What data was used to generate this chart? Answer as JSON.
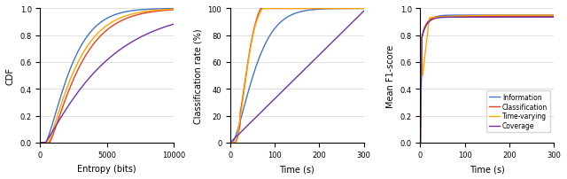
{
  "colors": {
    "information": "#4472C4",
    "classification": "#E8401C",
    "time_varying": "#FFA500",
    "coverage": "#7030A0"
  },
  "legend_labels": [
    "Information",
    "Classification",
    "Time-varying",
    "Coverage"
  ],
  "plot1": {
    "xlabel": "Entropy (bits)",
    "ylabel": "CDF",
    "xlim": [
      0,
      10000
    ],
    "ylim": [
      0,
      1
    ],
    "xticks": [
      0,
      5000,
      10000
    ],
    "yticks": [
      0,
      0.2,
      0.4,
      0.6,
      0.8,
      1.0
    ]
  },
  "plot2": {
    "xlabel": "Time (s)",
    "ylabel": "Classification rate (%)",
    "xlim": [
      0,
      300
    ],
    "ylim": [
      0,
      100
    ],
    "xticks": [
      0,
      100,
      200,
      300
    ],
    "yticks": [
      0,
      20,
      40,
      60,
      80,
      100
    ]
  },
  "plot3": {
    "xlabel": "Time (s)",
    "ylabel": "Mean F1-score",
    "xlim": [
      0,
      300
    ],
    "ylim": [
      0,
      1
    ],
    "xticks": [
      0,
      100,
      200,
      300
    ],
    "yticks": [
      0,
      0.2,
      0.4,
      0.6,
      0.8,
      1.0
    ]
  },
  "background_color": "#ffffff",
  "grid_color": "#d3d3d3"
}
